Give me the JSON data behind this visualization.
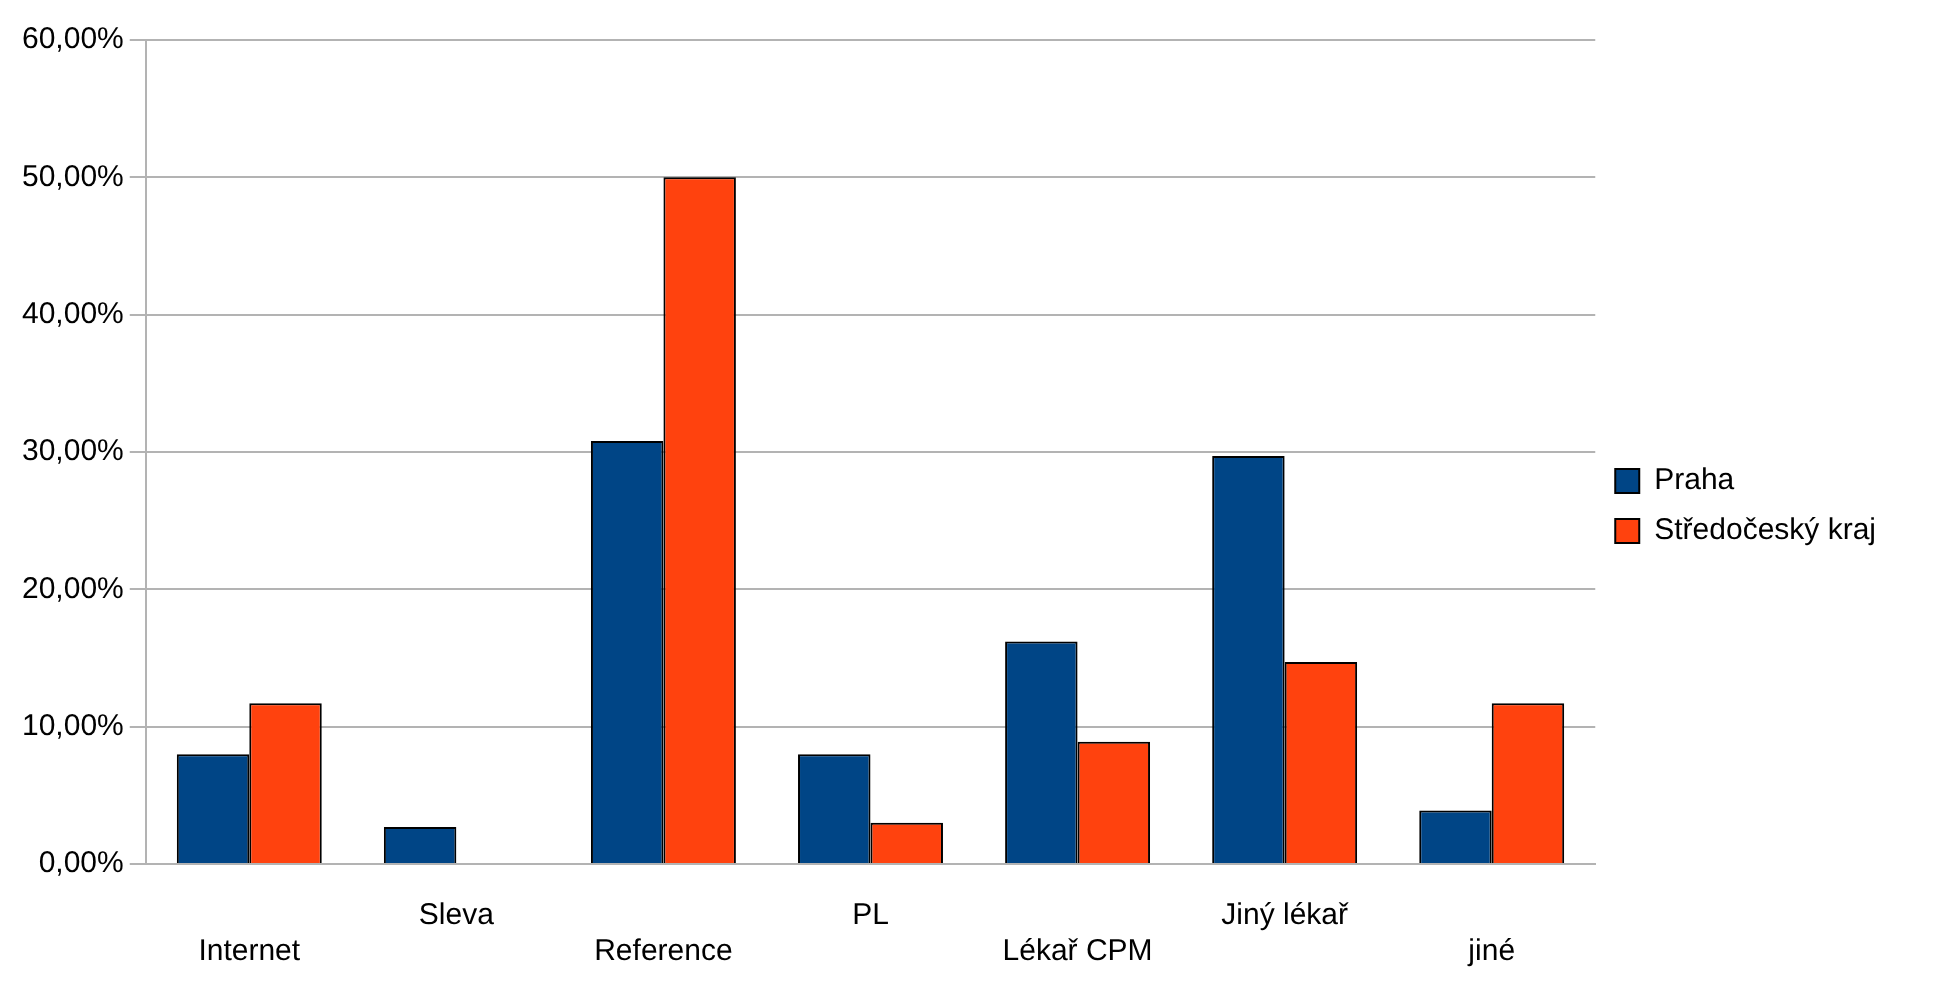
{
  "chart_data": {
    "type": "bar",
    "categories": [
      "Internet",
      "Sleva",
      "Reference",
      "PL",
      "Lékař CPM",
      "Jiný lékař",
      "jiné"
    ],
    "series": [
      {
        "name": "Praha",
        "color": "#004586",
        "values": [
          8.0,
          2.7,
          30.8,
          8.0,
          16.2,
          29.7,
          3.9
        ]
      },
      {
        "name": "Středočeský kraj",
        "color": "#ff420e",
        "values": [
          11.7,
          0,
          50.0,
          3.0,
          8.9,
          14.7,
          11.7
        ]
      }
    ],
    "ylim": [
      0,
      60
    ],
    "yticks": [
      {
        "value": 0,
        "label": "0,00%"
      },
      {
        "value": 10,
        "label": "10,00%"
      },
      {
        "value": 20,
        "label": "20,00%"
      },
      {
        "value": 30,
        "label": "30,00%"
      },
      {
        "value": 40,
        "label": "40,00%"
      },
      {
        "value": 50,
        "label": "50,00%"
      },
      {
        "value": 60,
        "label": "60,00%"
      }
    ],
    "grid": "y",
    "legend": "right"
  }
}
